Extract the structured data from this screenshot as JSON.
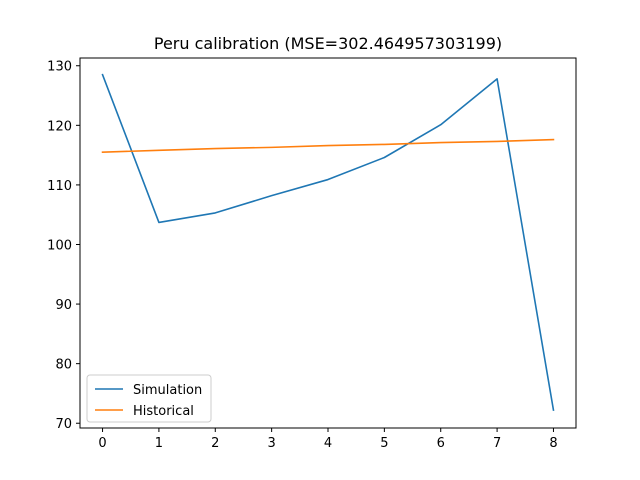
{
  "chart_data": {
    "type": "line",
    "title": "Peru calibration (MSE=302.464957303199)",
    "xlabel": "",
    "ylabel": "",
    "x": [
      0,
      1,
      2,
      3,
      4,
      5,
      6,
      7,
      8
    ],
    "xlim": [
      -0.4,
      8.4
    ],
    "ylim": [
      69.2,
      131.3
    ],
    "xticks": [
      0,
      1,
      2,
      3,
      4,
      5,
      6,
      7,
      8
    ],
    "yticks": [
      70,
      80,
      90,
      100,
      110,
      120,
      130
    ],
    "grid": false,
    "legend_position": "lower-left",
    "series": [
      {
        "name": "Simulation",
        "color": "#1f77b4",
        "values": [
          128.5,
          103.7,
          105.3,
          108.2,
          110.9,
          114.6,
          120.1,
          127.8,
          72.2
        ]
      },
      {
        "name": "Historical",
        "color": "#ff7f0e",
        "values": [
          115.5,
          115.8,
          116.1,
          116.3,
          116.6,
          116.8,
          117.1,
          117.3,
          117.6
        ]
      }
    ]
  }
}
